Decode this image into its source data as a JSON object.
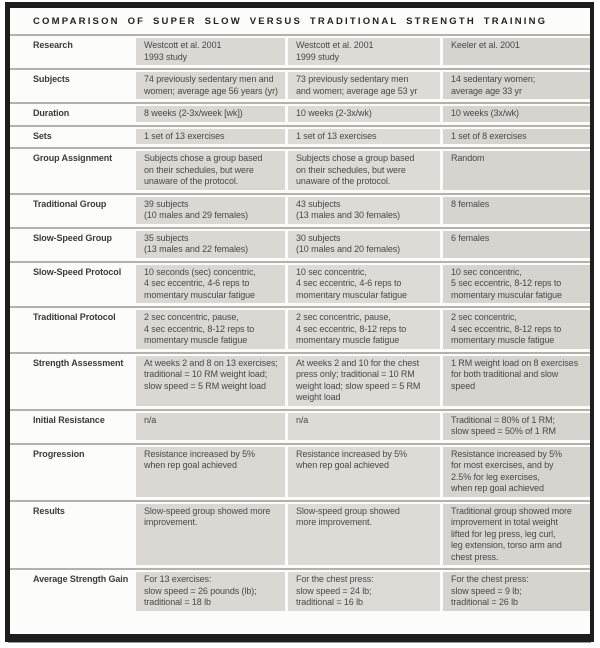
{
  "title": "COMPARISON OF SUPER SLOW VERSUS TRADITIONAL STRENGTH TRAINING",
  "colors": {
    "frame": "#1d1d1d",
    "separator": "#b2b1ac",
    "column_backgrounds": [
      "#d9d8d3",
      "#dcdbd6",
      "#d5d4cf"
    ],
    "label_text": "#3b3b39",
    "cell_text": "#4a4a46"
  },
  "table": {
    "rows": [
      {
        "label": "Research",
        "cells": [
          "Westcott et al. 2001\n1993 study",
          "Westcott et al. 2001\n1999 study",
          "Keeler et al. 2001"
        ]
      },
      {
        "label": "Subjects",
        "cells": [
          "74 previously sedentary men and\nwomen; average age 56 years (yr)",
          "73 previously sedentary men\nand women; average age 53 yr",
          "14 sedentary women;\naverage age 33 yr"
        ]
      },
      {
        "label": "Duration",
        "cells": [
          "8 weeks (2-3x/week [wk])",
          "10 weeks (2-3x/wk)",
          "10 weeks (3x/wk)"
        ]
      },
      {
        "label": "Sets",
        "cells": [
          "1 set of 13 exercises",
          "1 set of 13 exercises",
          "1 set of 8 exercises"
        ]
      },
      {
        "label": "Group Assignment",
        "cells": [
          "Subjects chose a group based\non their schedules, but were\nunaware of the protocol.",
          "Subjects chose a group based\non their schedules, but were\nunaware of the protocol.",
          "Random"
        ]
      },
      {
        "label": "Traditional Group",
        "cells": [
          "39 subjects\n(10 males and 29 females)",
          "43 subjects\n(13 males and 30 females)",
          "8 females"
        ]
      },
      {
        "label": "Slow-Speed Group",
        "cells": [
          "35 subjects\n(13 males and 22 females)",
          "30 subjects\n(10 males and 20 females)",
          "6 females"
        ]
      },
      {
        "label": "Slow-Speed Protocol",
        "cells": [
          "10 seconds (sec) concentric,\n4 sec eccentric, 4-6 reps to\nmomentary muscular fatigue",
          "10 sec concentric,\n4 sec eccentric, 4-6 reps to\nmomentary muscular fatigue",
          "10 sec concentric,\n5 sec eccentric, 8-12 reps to\nmomentary muscular fatigue"
        ]
      },
      {
        "label": "Traditional Protocol",
        "cells": [
          "2 sec concentric, pause,\n4 sec eccentric, 8-12 reps to\nmomentary muscle fatigue",
          "2 sec concentric, pause,\n4 sec eccentric, 8-12 reps to\nmomentary muscle fatigue",
          "2 sec concentric,\n4 sec eccentric, 8-12 reps to\nmomentary muscle fatigue"
        ]
      },
      {
        "label": "Strength Assessment",
        "cells": [
          "At weeks 2 and 8 on 13 exercises;\ntraditional = 10 RM weight load;\nslow speed = 5 RM weight load",
          "At weeks 2 and 10 for the chest\npress only; traditional = 10 RM\nweight load; slow speed = 5 RM\nweight load",
          "1 RM weight load on 8 exercises\nfor both traditional and slow\nspeed"
        ]
      },
      {
        "label": "Initial Resistance",
        "cells": [
          "n/a",
          "n/a",
          "Traditional = 80% of 1 RM;\nslow speed = 50% of 1 RM"
        ]
      },
      {
        "label": "Progression",
        "cells": [
          "Resistance increased by 5%\nwhen rep goal achieved",
          "Resistance increased by 5%\nwhen rep goal achieved",
          "Resistance increased by 5%\nfor most exercises, and by\n2.5% for leg exercises,\nwhen rep goal achieved"
        ]
      },
      {
        "label": "Results",
        "cells": [
          "Slow-speed group showed more\nimprovement.",
          "Slow-speed group showed\nmore improvement.",
          "Traditional group showed more\nimprovement in total weight\nlifted for leg press, leg curl,\nleg extension, torso arm and\nchest press."
        ]
      },
      {
        "label": "Average Strength Gain",
        "cells": [
          "For 13 exercises:\nslow speed = 26 pounds (lb);\ntraditional = 18 lb",
          "For the chest press:\nslow speed = 24 lb;\ntraditional = 16 lb",
          "For the chest press:\nslow speed = 9 lb;\ntraditional = 26 lb"
        ]
      }
    ]
  }
}
